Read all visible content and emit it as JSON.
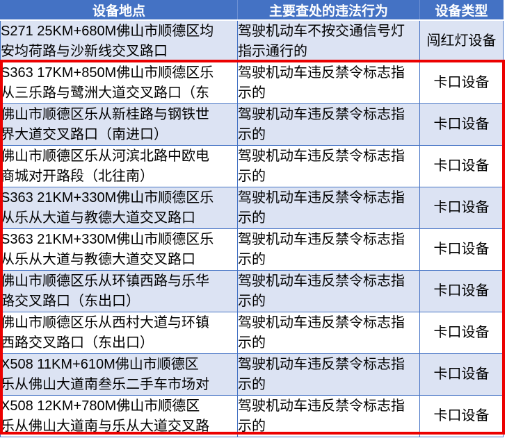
{
  "colors": {
    "header_background": "#4472C4",
    "header_text": "#FFFFFF",
    "banded_row_background": "#DCE3F3",
    "grid_border": "#4472C4",
    "highlight_border": "#EC0000",
    "body_text": "#000000"
  },
  "table": {
    "columns": [
      "设备地点",
      "主要查处的违法行为",
      "设备类型"
    ],
    "rows": [
      {
        "location": "S271 25KM+680M佛山市顺德区均\n安均荷路与沙新线交叉路口",
        "violation": "驾驶机动车不按交通信号灯\n指示通行的",
        "device_type": "闯红灯设备"
      },
      {
        "location": "S363 17KM+850M佛山市顺德区乐\n从三乐路与鹭洲大道交叉路口（东",
        "violation": "驾驶机动车违反禁令标志指\n示的",
        "device_type": "卡口设备"
      },
      {
        "location": "佛山市顺德区乐从新桂路与钢铁世\n界大道交叉路口（南进口）",
        "violation": "驾驶机动车违反禁令标志指\n示的",
        "device_type": "卡口设备"
      },
      {
        "location": "佛山市顺德区乐从河滨北路中欧电\n商城对开路段（北往南）",
        "violation": "驾驶机动车违反禁令标志指\n示的",
        "device_type": "卡口设备"
      },
      {
        "location": "S363 21KM+330M佛山市顺德区乐\n从乐从大道与教德大道交叉路口",
        "violation": "驾驶机动车违反禁令标志指\n示的",
        "device_type": "卡口设备"
      },
      {
        "location": "S363 21KM+330M佛山市顺德区乐\n从乐从大道与教德大道交叉路口",
        "violation": "驾驶机动车违反禁令标志指\n示的",
        "device_type": "卡口设备"
      },
      {
        "location": "佛山市顺德区乐从环镇西路与乐华\n路交叉路口（东出口）",
        "violation": "驾驶机动车违反禁令标志指\n示的",
        "device_type": "卡口设备"
      },
      {
        "location": "佛山市顺德区乐从西村大道与环镇\n西路交叉路口（东出口）",
        "violation": "驾驶机动车违反禁令标志指\n示的",
        "device_type": "卡口设备"
      },
      {
        "location": "X508 11KM+610M佛山市顺德区\n乐从佛山大道南叁乐二手车市场对",
        "violation": "驾驶机动车违反禁令标志指\n示的",
        "device_type": "卡口设备"
      },
      {
        "location": "X508 12KM+780M佛山市顺德区\n乐从佛山大道南与乐从大道交叉路",
        "violation": "驾驶机动车违反禁令标志指\n示的",
        "device_type": "卡口设备"
      }
    ]
  }
}
